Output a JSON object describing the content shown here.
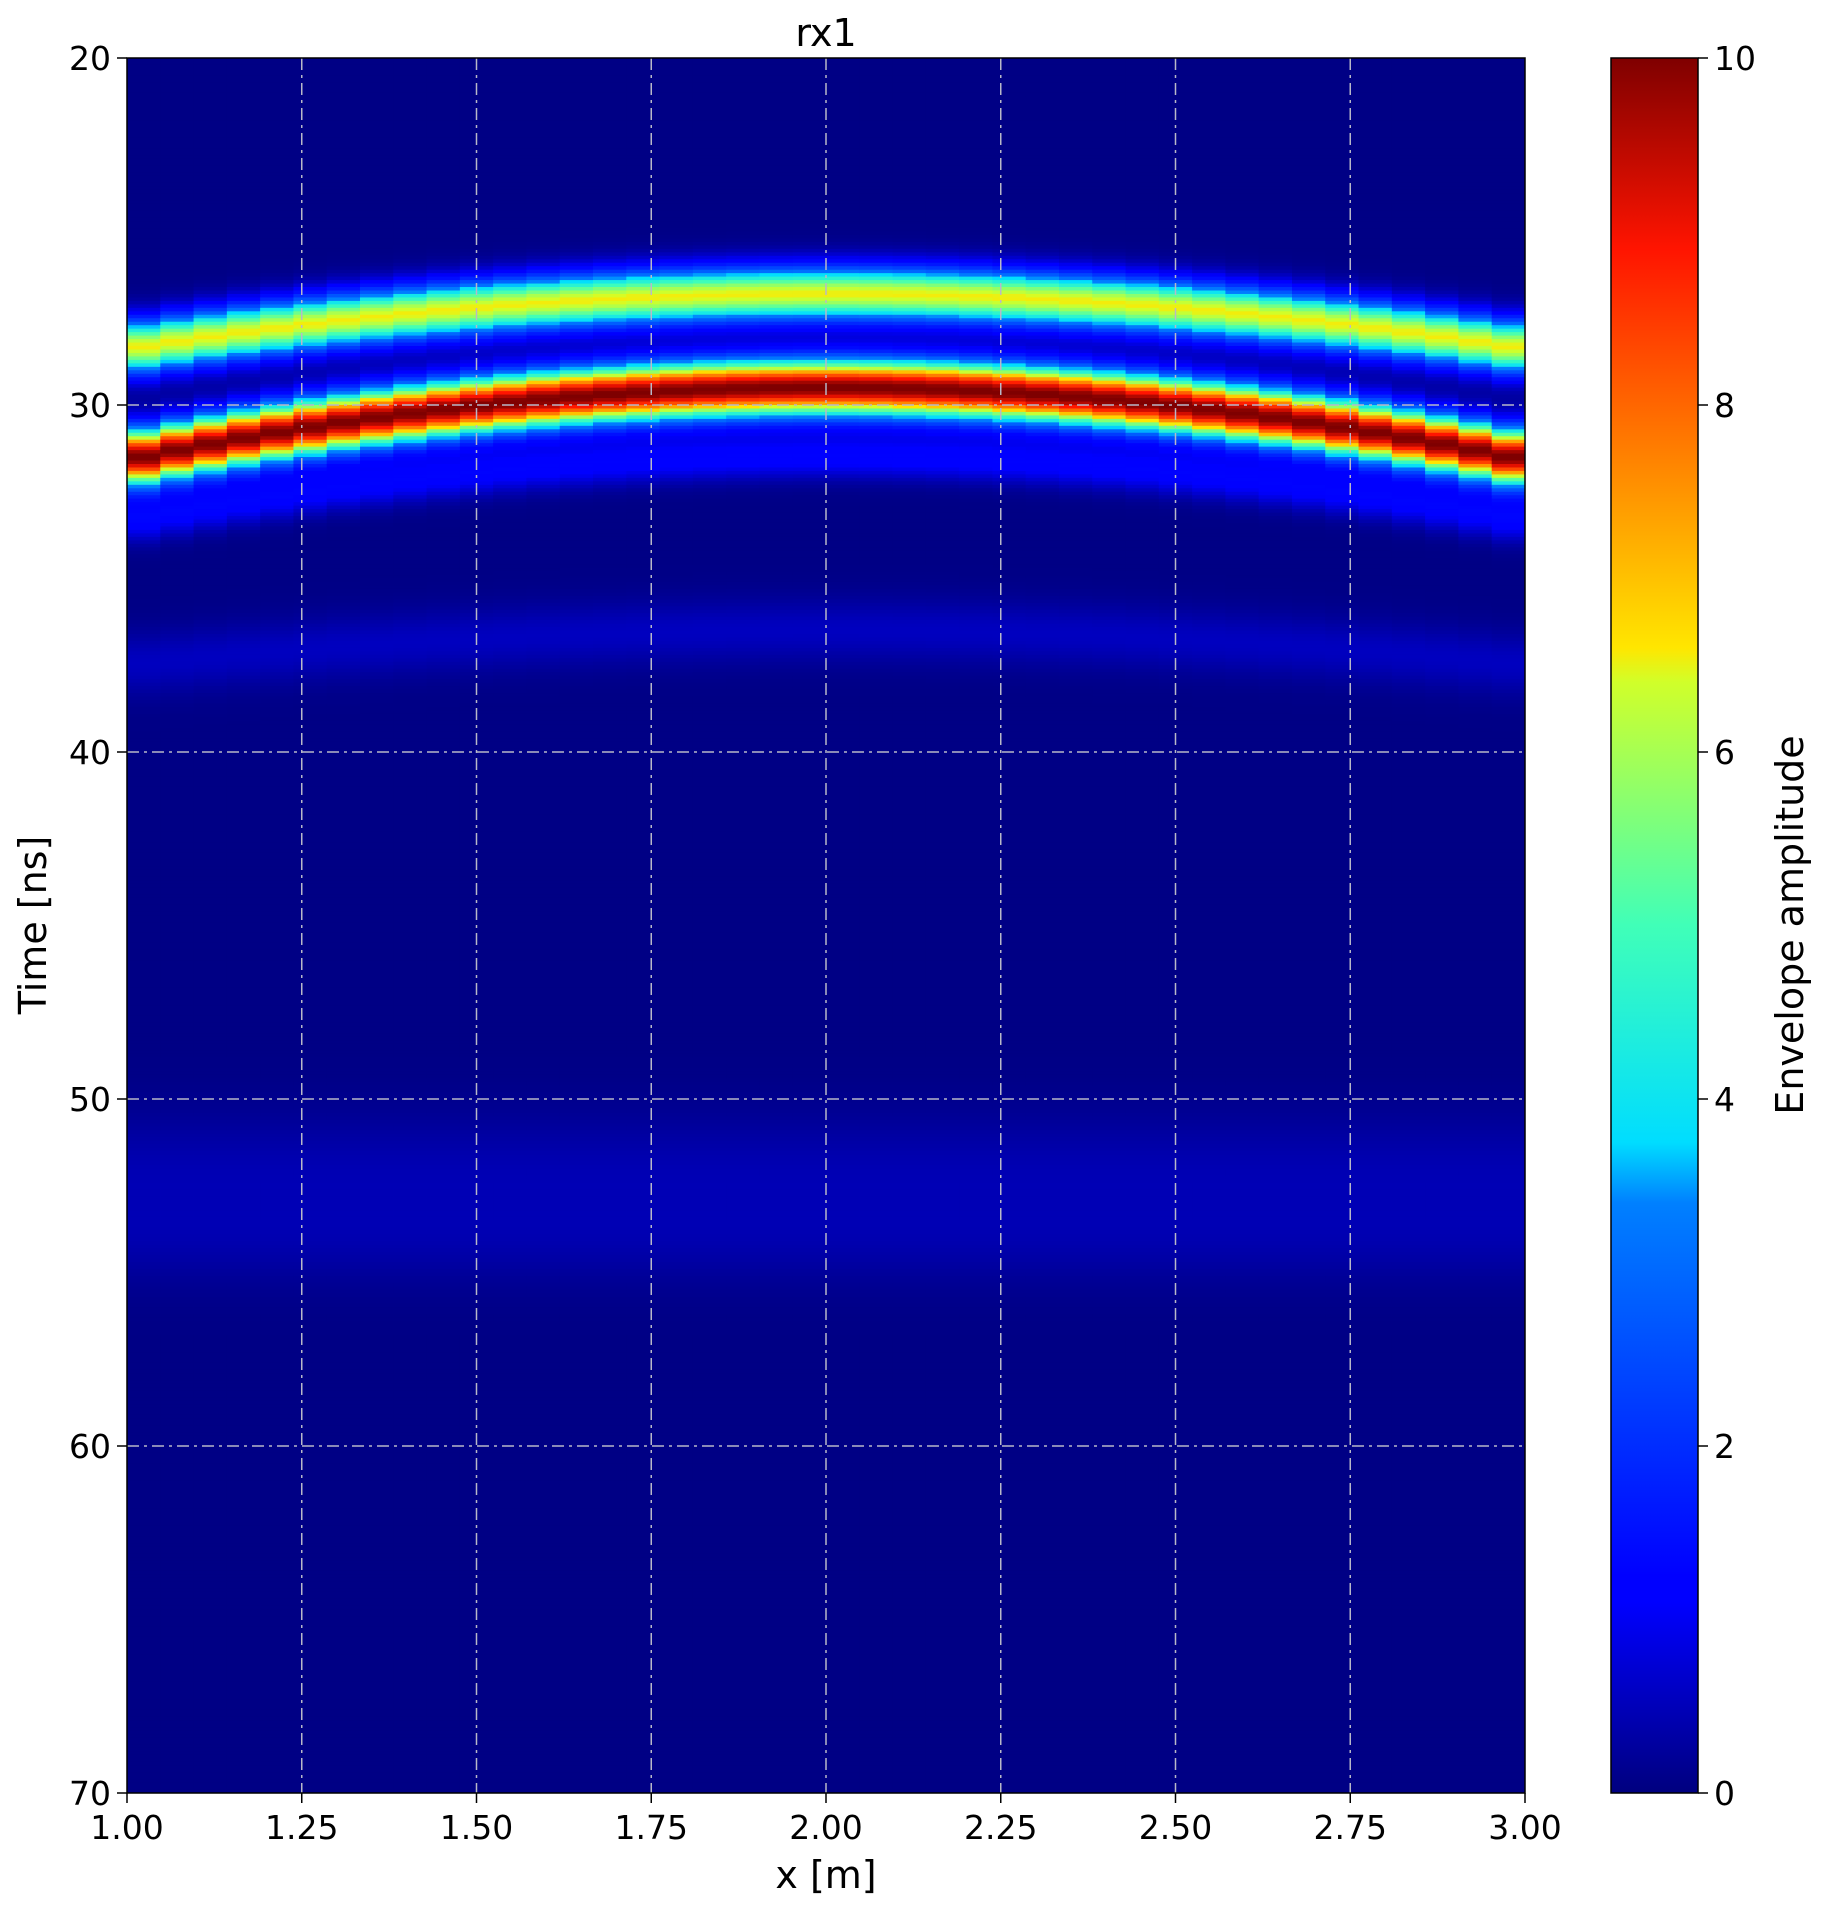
{
  "chart_data": {
    "type": "heatmap",
    "title": "rx1",
    "xlabel": "x [m]",
    "ylabel": "Time [ns]",
    "xlim": [
      1.0,
      3.0
    ],
    "ylim": [
      20,
      70
    ],
    "y_inverted": true,
    "xticks": [
      "1.00",
      "1.25",
      "1.50",
      "1.75",
      "2.00",
      "2.25",
      "2.50",
      "2.75",
      "3.00"
    ],
    "yticks": [
      "20",
      "30",
      "40",
      "50",
      "60",
      "70"
    ],
    "grid": true,
    "colormap": "jet",
    "colorbar": {
      "label": "Envelope amplitude",
      "range": [
        0,
        10
      ],
      "ticks": [
        "0",
        "2",
        "4",
        "6",
        "8",
        "10"
      ]
    },
    "pattern": {
      "apex_x": 2.0,
      "traces": 42,
      "bands": [
        {
          "apex_time": 26.8,
          "edge_time": 28.4,
          "peak_amplitude": 6.5
        },
        {
          "apex_time": 29.5,
          "edge_time": 31.6,
          "peak_amplitude": 10.0
        },
        {
          "apex_time": 31.5,
          "edge_time": 33.4,
          "peak_amplitude": 1.2
        },
        {
          "apex_time": 36.5,
          "edge_time": 37.5,
          "peak_amplitude": 0.5
        },
        {
          "apex_time": 52.0,
          "edge_time": 52.0,
          "peak_amplitude": 0.35
        },
        {
          "apex_time": 54.0,
          "edge_time": 54.0,
          "peak_amplitude": 0.3
        }
      ]
    }
  }
}
